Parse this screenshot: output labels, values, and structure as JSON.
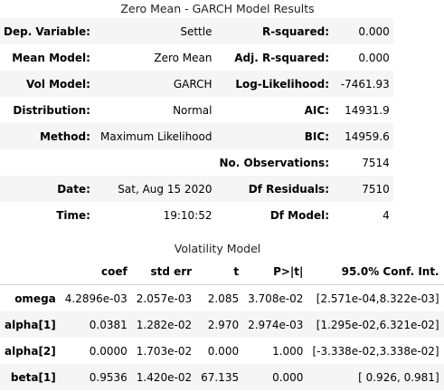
{
  "title": "Zero Mean - GARCH Model Results",
  "summary_rows": [
    {
      "l1": "Dep. Variable:",
      "v1": "Settle",
      "l2": "R-squared:",
      "v2": "0.000"
    },
    {
      "l1": "Mean Model:",
      "v1": "Zero Mean",
      "l2": "Adj. R-squared:",
      "v2": "0.000"
    },
    {
      "l1": "Vol Model:",
      "v1": "GARCH",
      "l2": "Log-Likelihood:",
      "v2": "-7461.93"
    },
    {
      "l1": "Distribution:",
      "v1": "Normal",
      "l2": "AIC:",
      "v2": "14931.9"
    },
    {
      "l1": "Method:",
      "v1": "Maximum Likelihood",
      "l2": "BIC:",
      "v2": "14959.6"
    },
    {
      "l1": "",
      "v1": "",
      "l2": "No. Observations:",
      "v2": "7514"
    },
    {
      "l1": "Date:",
      "v1": "Sat, Aug 15 2020",
      "l2": "Df Residuals:",
      "v2": "7510"
    },
    {
      "l1": "Time:",
      "v1": "19:10:52",
      "l2": "Df Model:",
      "v2": "4"
    }
  ],
  "volatility": {
    "caption": "Volatility Model",
    "headers": [
      "",
      "coef",
      "std err",
      "t",
      "P>|t|",
      "95.0% Conf. Int."
    ],
    "rows": [
      {
        "name": "omega",
        "coef": "4.2896e-03",
        "std_err": "2.057e-03",
        "t": "2.085",
        "p": "3.708e-02",
        "ci": "[2.571e-04,8.322e-03]"
      },
      {
        "name": "alpha[1]",
        "coef": "0.0381",
        "std_err": "1.282e-02",
        "t": "2.970",
        "p": "2.974e-03",
        "ci": "[1.295e-02,6.321e-02]"
      },
      {
        "name": "alpha[2]",
        "coef": "0.0000",
        "std_err": "1.703e-02",
        "t": "0.000",
        "p": "1.000",
        "ci": "[-3.338e-02,3.338e-02]"
      },
      {
        "name": "beta[1]",
        "coef": "0.9536",
        "std_err": "1.420e-02",
        "t": "67.135",
        "p": "0.000",
        "ci": "[ 0.926, 0.981]"
      }
    ]
  }
}
